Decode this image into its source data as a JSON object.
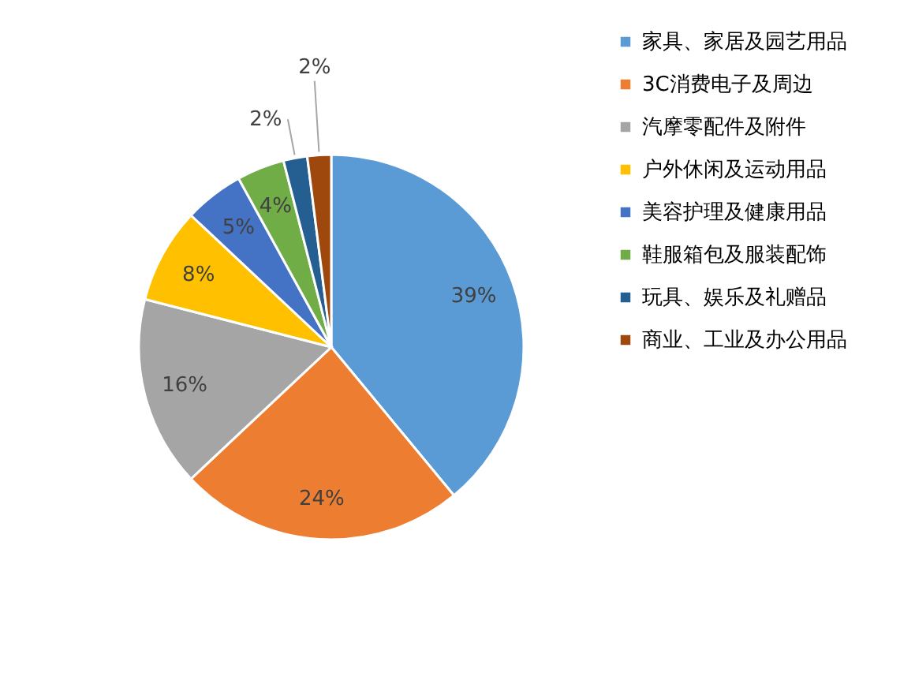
{
  "chart_data": {
    "type": "pie",
    "categories": [
      "家具、家居及园艺用品",
      "3C消费电子及周边",
      "汽摩零配件及附件",
      "户外休闲及运动用品",
      "美容护理及健康用品",
      "鞋服箱包及服装配饰",
      "玩具、娱乐及礼赠品",
      "商业、工业及办公用品"
    ],
    "values": [
      39,
      24,
      16,
      8,
      5,
      4,
      2,
      2
    ],
    "colors": [
      "#5b9bd5",
      "#ed7d31",
      "#a5a5a5",
      "#ffc000",
      "#4472c4",
      "#70ad47",
      "#255e91",
      "#9e480e"
    ],
    "value_labels": [
      "39%",
      "24%",
      "16%",
      "8%",
      "5%",
      "4%",
      "2%",
      "2%"
    ],
    "legend": "right"
  }
}
